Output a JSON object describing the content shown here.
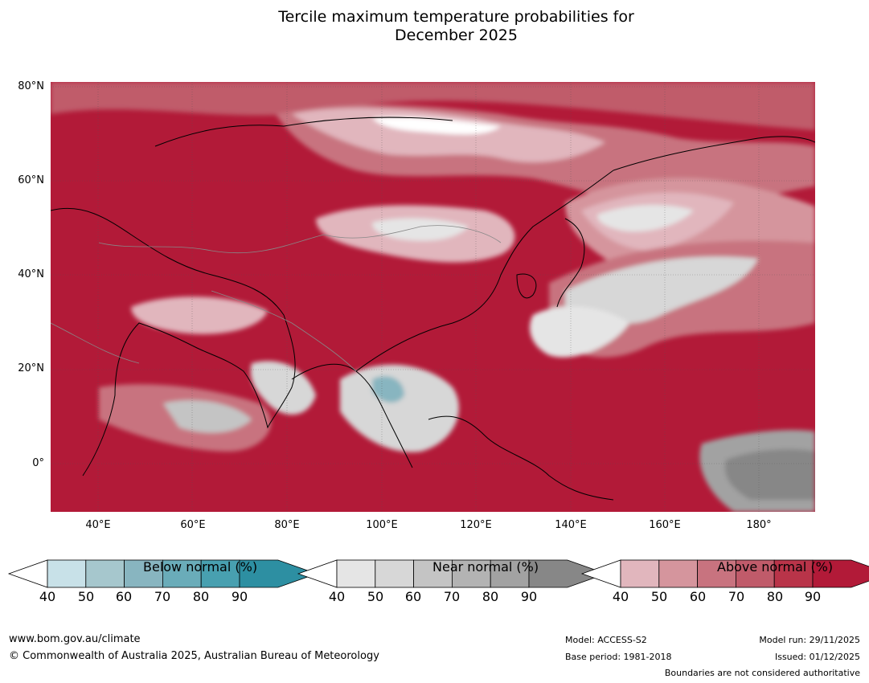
{
  "title": {
    "line1": "Tercile maximum temperature probabilities for",
    "line2": "December 2025"
  },
  "lat_labels": [
    "80°N",
    "60°N",
    "40°N",
    "20°N",
    "0°"
  ],
  "lon_labels": [
    "40°E",
    "60°E",
    "80°E",
    "100°E",
    "120°E",
    "140°E",
    "160°E",
    "180°"
  ],
  "colorbars": [
    {
      "label": "Below normal (%)",
      "ticks": [
        "40",
        "50",
        "60",
        "70",
        "80",
        "90"
      ],
      "colors": [
        "#c8e1e8",
        "#a6c7cd",
        "#88b5c0",
        "#6aacb9",
        "#48a0b0",
        "#2d8fa2"
      ]
    },
    {
      "label": "Near normal (%)",
      "ticks": [
        "40",
        "50",
        "60",
        "70",
        "80",
        "90"
      ],
      "colors": [
        "#e5e5e5",
        "#d7d7d7",
        "#c4c4c4",
        "#b3b3b3",
        "#a2a2a2",
        "#878787"
      ]
    },
    {
      "label": "Above normal (%)",
      "ticks": [
        "40",
        "50",
        "60",
        "70",
        "80",
        "90"
      ],
      "colors": [
        "#e1b6bd",
        "#d5959d",
        "#c8737f",
        "#c05b6a",
        "#b93449",
        "#b21a38"
      ]
    }
  ],
  "footer": {
    "website": "www.bom.gov.au/climate",
    "copyright": "© Commonwealth of Australia 2025, Australian Bureau of Meteorology",
    "model": "Model: ACCESS-S2",
    "base_period": "Base period: 1981-2018",
    "model_run": "Model run: 29/11/2025",
    "issued": "Issued: 01/12/2025",
    "disclaimer": "Boundaries are not considered authoritative"
  }
}
